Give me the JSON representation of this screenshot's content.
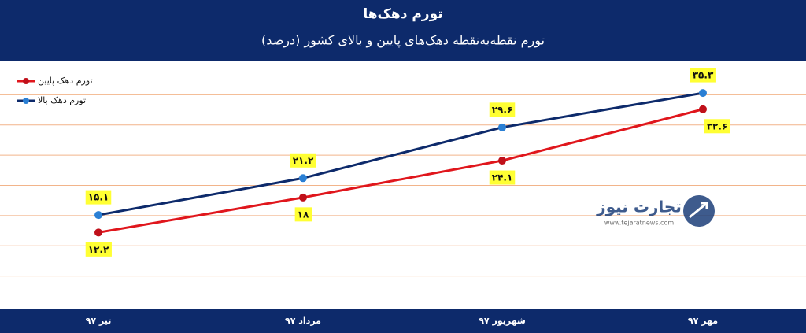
{
  "chart_data": {
    "type": "line",
    "title": "تورم دهک‌ها",
    "subtitle": "تورم نقطه‌به‌نقطه دهک‌های پایین و بالای کشور (درصد)",
    "categories": [
      "تیر ۹۷",
      "مرداد ۹۷",
      "شهریور ۹۷",
      "مهر ۹۷"
    ],
    "series": [
      {
        "name": "تورم دهک پایین",
        "color": "#e0161c",
        "values": [
          12.2,
          18,
          24.1,
          32.6
        ],
        "value_labels": [
          "۱۲.۲",
          "۱۸",
          "۲۴.۱",
          "۳۲.۶"
        ]
      },
      {
        "name": "تورم دهک بالا",
        "color": "#0d2a6b",
        "values": [
          15.1,
          21.2,
          29.6,
          35.3
        ],
        "value_labels": [
          "۱۵.۱",
          "۲۱.۲",
          "۲۹.۶",
          "۳۵.۳"
        ]
      }
    ],
    "ylim": [
      0,
      40
    ],
    "yticks": [
      5,
      10,
      15,
      20,
      25,
      30,
      35
    ],
    "grid": true,
    "legend": "top-left"
  },
  "watermark": {
    "name": "تجارت نیوز",
    "url": "www.tejaratnews.com"
  }
}
